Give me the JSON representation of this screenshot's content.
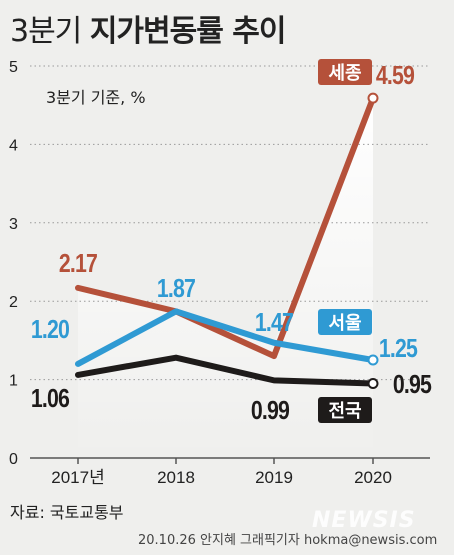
{
  "title": {
    "part1": "3분기 ",
    "part2": "지가변동률 추이"
  },
  "unit_note": "3분기 기준, %",
  "source": "자료: 국토교통부",
  "credit": "20.10.26 안지혜 그래픽기자 hokma@newsis.com",
  "watermark": "NEWSIS",
  "chart_data": {
    "type": "line",
    "categories": [
      "2017년",
      "2018",
      "2019",
      "2020"
    ],
    "ylim": [
      0,
      5
    ],
    "yticks": [
      "0",
      "1",
      "2",
      "3",
      "4",
      "5"
    ],
    "series": [
      {
        "name": "세종",
        "values": [
          2.17,
          1.87,
          1.3,
          4.59
        ],
        "labels": [
          "2.17",
          "",
          "",
          "4.59"
        ],
        "color": "#b5513a"
      },
      {
        "name": "서울",
        "values": [
          1.2,
          1.87,
          1.47,
          1.25
        ],
        "labels": [
          "1.20",
          "1.87",
          "1.47",
          "1.25"
        ],
        "color": "#2f9ad3"
      },
      {
        "name": "전국",
        "values": [
          1.06,
          1.28,
          0.99,
          0.95
        ],
        "labels": [
          "1.06",
          "",
          "0.99",
          "0.95"
        ],
        "color": "#1e1b1a"
      }
    ]
  }
}
